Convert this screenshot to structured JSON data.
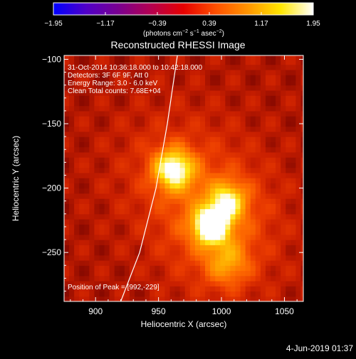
{
  "chart_data": {
    "type": "heatmap",
    "title": "Reconstructed RHESSI Image",
    "xlabel": "Heliocentric X (arcsec)",
    "ylabel": "Heliocentric Y (arcsec)",
    "xlim": [
      875,
      1065
    ],
    "ylim": [
      -288,
      -97
    ],
    "x_ticks": [
      900,
      950,
      1000,
      1050
    ],
    "y_ticks": [
      -100,
      -150,
      -200,
      -250
    ],
    "x_tick_labels": [
      "900",
      "950",
      "1000",
      "1050"
    ],
    "y_tick_labels": [
      "−100",
      "−150",
      "−200",
      "−250"
    ],
    "annotations": [
      "31-Oct-2014 10:36:18.000 to 10:42:18.000",
      "Detectors: 3F 6F 9F, Att 0",
      "Energy Range: 3.0 - 6.0 keV",
      "Clean     Total counts: 7.68E+04"
    ],
    "peak_label": "Position of Peak = [992,-229]",
    "peak": [
      992,
      -229
    ],
    "sources": [
      {
        "x": 992,
        "y": -229,
        "amplitude": 1.0,
        "sigma": 9
      },
      {
        "x": 962,
        "y": -185,
        "amplitude": 0.75,
        "sigma": 11
      },
      {
        "x": 1005,
        "y": -210,
        "amplitude": 0.55,
        "sigma": 10
      },
      {
        "x": 1005,
        "y": -258,
        "amplitude": 0.35,
        "sigma": 12
      }
    ],
    "limb_curve": [
      [
        920,
        -288
      ],
      [
        935,
        -250
      ],
      [
        948,
        -200
      ],
      [
        957,
        -150
      ],
      [
        963,
        -110
      ],
      [
        965,
        -97
      ]
    ],
    "colorbar": {
      "min": -1.95,
      "max": 1.95,
      "tick_values": [
        -1.95,
        -1.17,
        -0.39,
        0.39,
        1.17,
        1.95
      ],
      "tick_labels": [
        "−1.95",
        "−1.17",
        "−0.39",
        "0.39",
        "1.17",
        "1.95"
      ],
      "label_parts": [
        "(photons cm",
        "−2",
        " s",
        "−1",
        " asec",
        "−2",
        ")"
      ],
      "colors": [
        "#0000ff",
        "#5000c8",
        "#7a0090",
        "#b40050",
        "#e60000",
        "#ff5000",
        "#ff9600",
        "#ffe600",
        "#ffffff"
      ]
    },
    "date_stamp": "4-Jun-2019 01:37"
  }
}
